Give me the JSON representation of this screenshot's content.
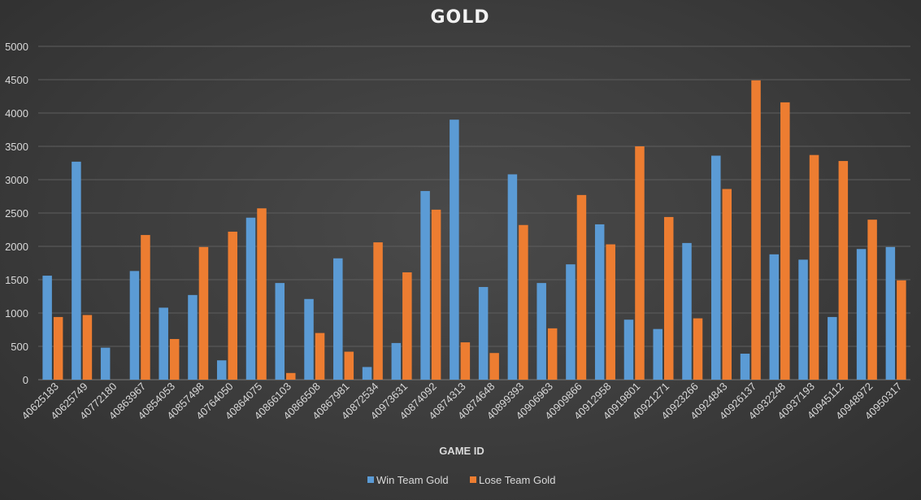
{
  "chart_data": {
    "type": "bar",
    "title": "GOLD",
    "xlabel": "GAME ID",
    "ylabel": "",
    "ylim": [
      0,
      5000
    ],
    "yticks": [
      0,
      500,
      1000,
      1500,
      2000,
      2500,
      3000,
      3500,
      4000,
      4500,
      5000
    ],
    "grid": true,
    "legend_position": "bottom",
    "categories": [
      "40625183",
      "40625749",
      "40772180",
      "40863967",
      "40854053",
      "40857498",
      "40764050",
      "40864075",
      "40866103",
      "40866508",
      "40867981",
      "40872534",
      "40973631",
      "40874092",
      "40874313",
      "40874648",
      "40899393",
      "40906963",
      "40909866",
      "40912958",
      "40919801",
      "40921271",
      "40923266",
      "40924843",
      "40926137",
      "40932248",
      "40937193",
      "40945112",
      "40948972",
      "40950317"
    ],
    "series": [
      {
        "name": "Win Team Gold",
        "color": "#5b9bd5",
        "values": [
          1560,
          3270,
          480,
          1630,
          1080,
          1270,
          290,
          2430,
          1450,
          1210,
          1820,
          190,
          550,
          2830,
          3900,
          1390,
          3080,
          1450,
          1730,
          2330,
          900,
          760,
          2050,
          3360,
          390,
          1880,
          1800,
          940,
          1960,
          1990
        ]
      },
      {
        "name": "Lose Team Gold",
        "color": "#ed7d31",
        "values": [
          940,
          970,
          0,
          2170,
          610,
          1990,
          2220,
          2570,
          100,
          700,
          420,
          2060,
          1610,
          2550,
          560,
          400,
          2320,
          770,
          2770,
          2030,
          3500,
          2440,
          920,
          2860,
          4490,
          4160,
          3370,
          3280,
          2400,
          1490
        ]
      }
    ]
  }
}
